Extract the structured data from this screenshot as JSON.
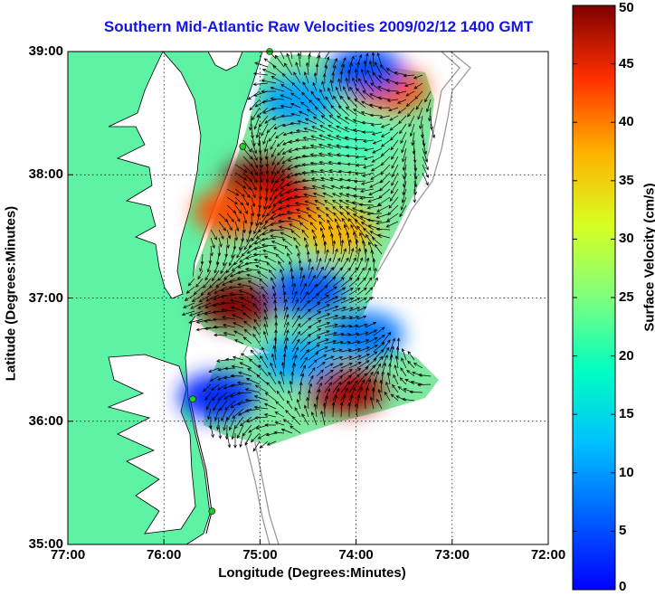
{
  "title": "Southern Mid-Atlantic Raw Velocities 2009/02/12 1400 GMT",
  "chart_data": {
    "type": "heatmap",
    "title": "Southern Mid-Atlantic Raw Velocities 2009/02/12 1400 GMT",
    "xlabel": "Longitude (Degrees:Minutes)",
    "ylabel": "Latitude (Degrees:Minutes)",
    "colorbar_label": "Surface Velocity (cm/s)",
    "xlim": [
      -77,
      -72
    ],
    "ylim": [
      35,
      39
    ],
    "clim": [
      0,
      50
    ],
    "x_ticks": [
      {
        "value": -77,
        "label": "77:00"
      },
      {
        "value": -76,
        "label": "76:00"
      },
      {
        "value": -75,
        "label": "75:00"
      },
      {
        "value": -74,
        "label": "74:00"
      },
      {
        "value": -73,
        "label": "73:00"
      },
      {
        "value": -72,
        "label": "72:00"
      }
    ],
    "y_ticks": [
      {
        "value": 39,
        "label": "39:00"
      },
      {
        "value": 38,
        "label": "38:00"
      },
      {
        "value": 37,
        "label": "37:00"
      },
      {
        "value": 36,
        "label": "36:00"
      },
      {
        "value": 35,
        "label": "35:00"
      }
    ],
    "colorbar_ticks": [
      {
        "value": 50,
        "label": "50"
      },
      {
        "value": 45,
        "label": "45"
      },
      {
        "value": 40,
        "label": "40"
      },
      {
        "value": 35,
        "label": "35"
      },
      {
        "value": 30,
        "label": "30"
      },
      {
        "value": 25,
        "label": "25"
      },
      {
        "value": 20,
        "label": "20"
      },
      {
        "value": 15,
        "label": "15"
      },
      {
        "value": 10,
        "label": "10"
      },
      {
        "value": 5,
        "label": "5"
      },
      {
        "value": 0,
        "label": "0"
      }
    ],
    "grid": "dotted",
    "colormap": "jet",
    "land_color": "#5ef2a5",
    "coastline_color": "#000000",
    "isobath_color": "#9a9a9a",
    "station_color": "#22cc22",
    "stations": [
      {
        "lon": -74.9,
        "lat": 39.0
      },
      {
        "lon": -75.18,
        "lat": 38.23
      },
      {
        "lon": -75.7,
        "lat": 36.18
      },
      {
        "lon": -75.5,
        "lat": 35.27
      }
    ],
    "velocity_regions": [
      {
        "lon": -75.0,
        "lat": 37.95,
        "speed": 50
      },
      {
        "lon": -74.75,
        "lat": 37.75,
        "speed": 45
      },
      {
        "lon": -75.3,
        "lat": 37.7,
        "speed": 40
      },
      {
        "lon": -75.25,
        "lat": 36.95,
        "speed": 50
      },
      {
        "lon": -74.1,
        "lat": 36.25,
        "speed": 48
      },
      {
        "lon": -73.65,
        "lat": 38.7,
        "speed": 40
      },
      {
        "lon": -74.2,
        "lat": 37.55,
        "speed": 35
      },
      {
        "lon": -74.5,
        "lat": 37.05,
        "speed": 10
      },
      {
        "lon": -75.45,
        "lat": 36.2,
        "speed": 8
      },
      {
        "lon": -74.6,
        "lat": 38.6,
        "speed": 14
      },
      {
        "lon": -74.0,
        "lat": 38.3,
        "speed": 22
      },
      {
        "lon": -74.6,
        "lat": 36.5,
        "speed": 14
      },
      {
        "lon": -73.9,
        "lat": 38.85,
        "speed": 10
      },
      {
        "lon": -73.9,
        "lat": 36.7,
        "speed": 12
      }
    ]
  }
}
